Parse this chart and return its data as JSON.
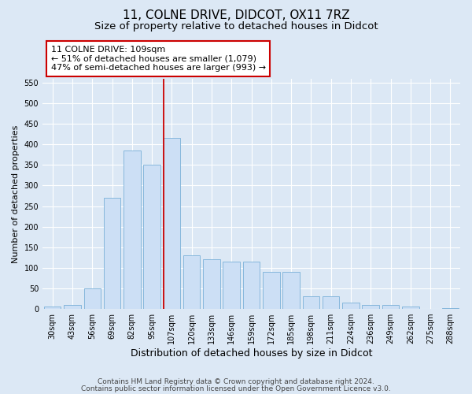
{
  "title": "11, COLNE DRIVE, DIDCOT, OX11 7RZ",
  "subtitle": "Size of property relative to detached houses in Didcot",
  "xlabel": "Distribution of detached houses by size in Didcot",
  "ylabel": "Number of detached properties",
  "categories": [
    "30sqm",
    "43sqm",
    "56sqm",
    "69sqm",
    "82sqm",
    "95sqm",
    "107sqm",
    "120sqm",
    "133sqm",
    "146sqm",
    "159sqm",
    "172sqm",
    "185sqm",
    "198sqm",
    "211sqm",
    "224sqm",
    "236sqm",
    "249sqm",
    "262sqm",
    "275sqm",
    "288sqm"
  ],
  "values": [
    5,
    10,
    50,
    270,
    385,
    350,
    415,
    130,
    120,
    115,
    115,
    90,
    90,
    30,
    30,
    15,
    10,
    10,
    5,
    0,
    3
  ],
  "bar_color": "#ccdff5",
  "bar_edge_color": "#7ab0d8",
  "vline_index": 6,
  "vline_color": "#cc0000",
  "annotation_text": "11 COLNE DRIVE: 109sqm\n← 51% of detached houses are smaller (1,079)\n47% of semi-detached houses are larger (993) →",
  "annotation_box_color": "#ffffff",
  "annotation_box_edge": "#cc0000",
  "ylim": [
    0,
    560
  ],
  "yticks": [
    0,
    50,
    100,
    150,
    200,
    250,
    300,
    350,
    400,
    450,
    500,
    550
  ],
  "background_color": "#dce8f5",
  "plot_background": "#dce8f5",
  "footer_line1": "Contains HM Land Registry data © Crown copyright and database right 2024.",
  "footer_line2": "Contains public sector information licensed under the Open Government Licence v3.0.",
  "title_fontsize": 11,
  "subtitle_fontsize": 9.5,
  "xlabel_fontsize": 9,
  "ylabel_fontsize": 8,
  "tick_fontsize": 7,
  "footer_fontsize": 6.5,
  "annotation_fontsize": 8
}
